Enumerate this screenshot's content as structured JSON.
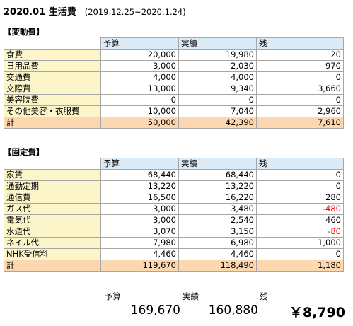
{
  "title": "2020.01  生活費",
  "period": "(2019.12.25~2020.1.24)",
  "headers": [
    "予算",
    "実績",
    "残"
  ],
  "variable": {
    "label": "【変動費】",
    "rows": [
      {
        "cat": "食費",
        "budget": "20,000",
        "actual": "19,980",
        "rest": "20"
      },
      {
        "cat": "日用品費",
        "budget": "3,000",
        "actual": "2,030",
        "rest": "970"
      },
      {
        "cat": "交通費",
        "budget": "4,000",
        "actual": "4,000",
        "rest": "0"
      },
      {
        "cat": "交際費",
        "budget": "13,000",
        "actual": "9,340",
        "rest": "3,660"
      },
      {
        "cat": "美容院費",
        "budget": "0",
        "actual": "0",
        "rest": "0"
      },
      {
        "cat": "その他美容・衣服費",
        "budget": "10,000",
        "actual": "7,040",
        "rest": "2,960"
      }
    ],
    "total": {
      "cat": "計",
      "budget": "50,000",
      "actual": "42,390",
      "rest": "7,610"
    }
  },
  "fixed": {
    "label": "【固定費】",
    "rows": [
      {
        "cat": "家賃",
        "budget": "68,440",
        "actual": "68,440",
        "rest": "0"
      },
      {
        "cat": "通勤定期",
        "budget": "13,220",
        "actual": "13,220",
        "rest": "0"
      },
      {
        "cat": "通信費",
        "budget": "16,500",
        "actual": "16,220",
        "rest": "280"
      },
      {
        "cat": "ガス代",
        "budget": "3,000",
        "actual": "3,480",
        "rest": "-480"
      },
      {
        "cat": "電気代",
        "budget": "3,000",
        "actual": "2,540",
        "rest": "460"
      },
      {
        "cat": "水道代",
        "budget": "3,070",
        "actual": "3,150",
        "rest": "-80"
      },
      {
        "cat": "ネイル代",
        "budget": "7,980",
        "actual": "6,980",
        "rest": "1,000"
      },
      {
        "cat": "NHK受信料",
        "budget": "4,460",
        "actual": "4,460",
        "rest": "0"
      }
    ],
    "total": {
      "cat": "計",
      "budget": "119,670",
      "actual": "118,490",
      "rest": "1,180"
    }
  },
  "summary": {
    "budget_label": "予算",
    "actual_label": "実績",
    "rest_label": "残",
    "budget": "169,670",
    "actual": "160,880",
    "rest": "￥8,790"
  },
  "colors": {
    "header": "#dcebf8",
    "category": "#fbf5c9",
    "total": "#fcd7b0",
    "negative": "#ff0000"
  }
}
